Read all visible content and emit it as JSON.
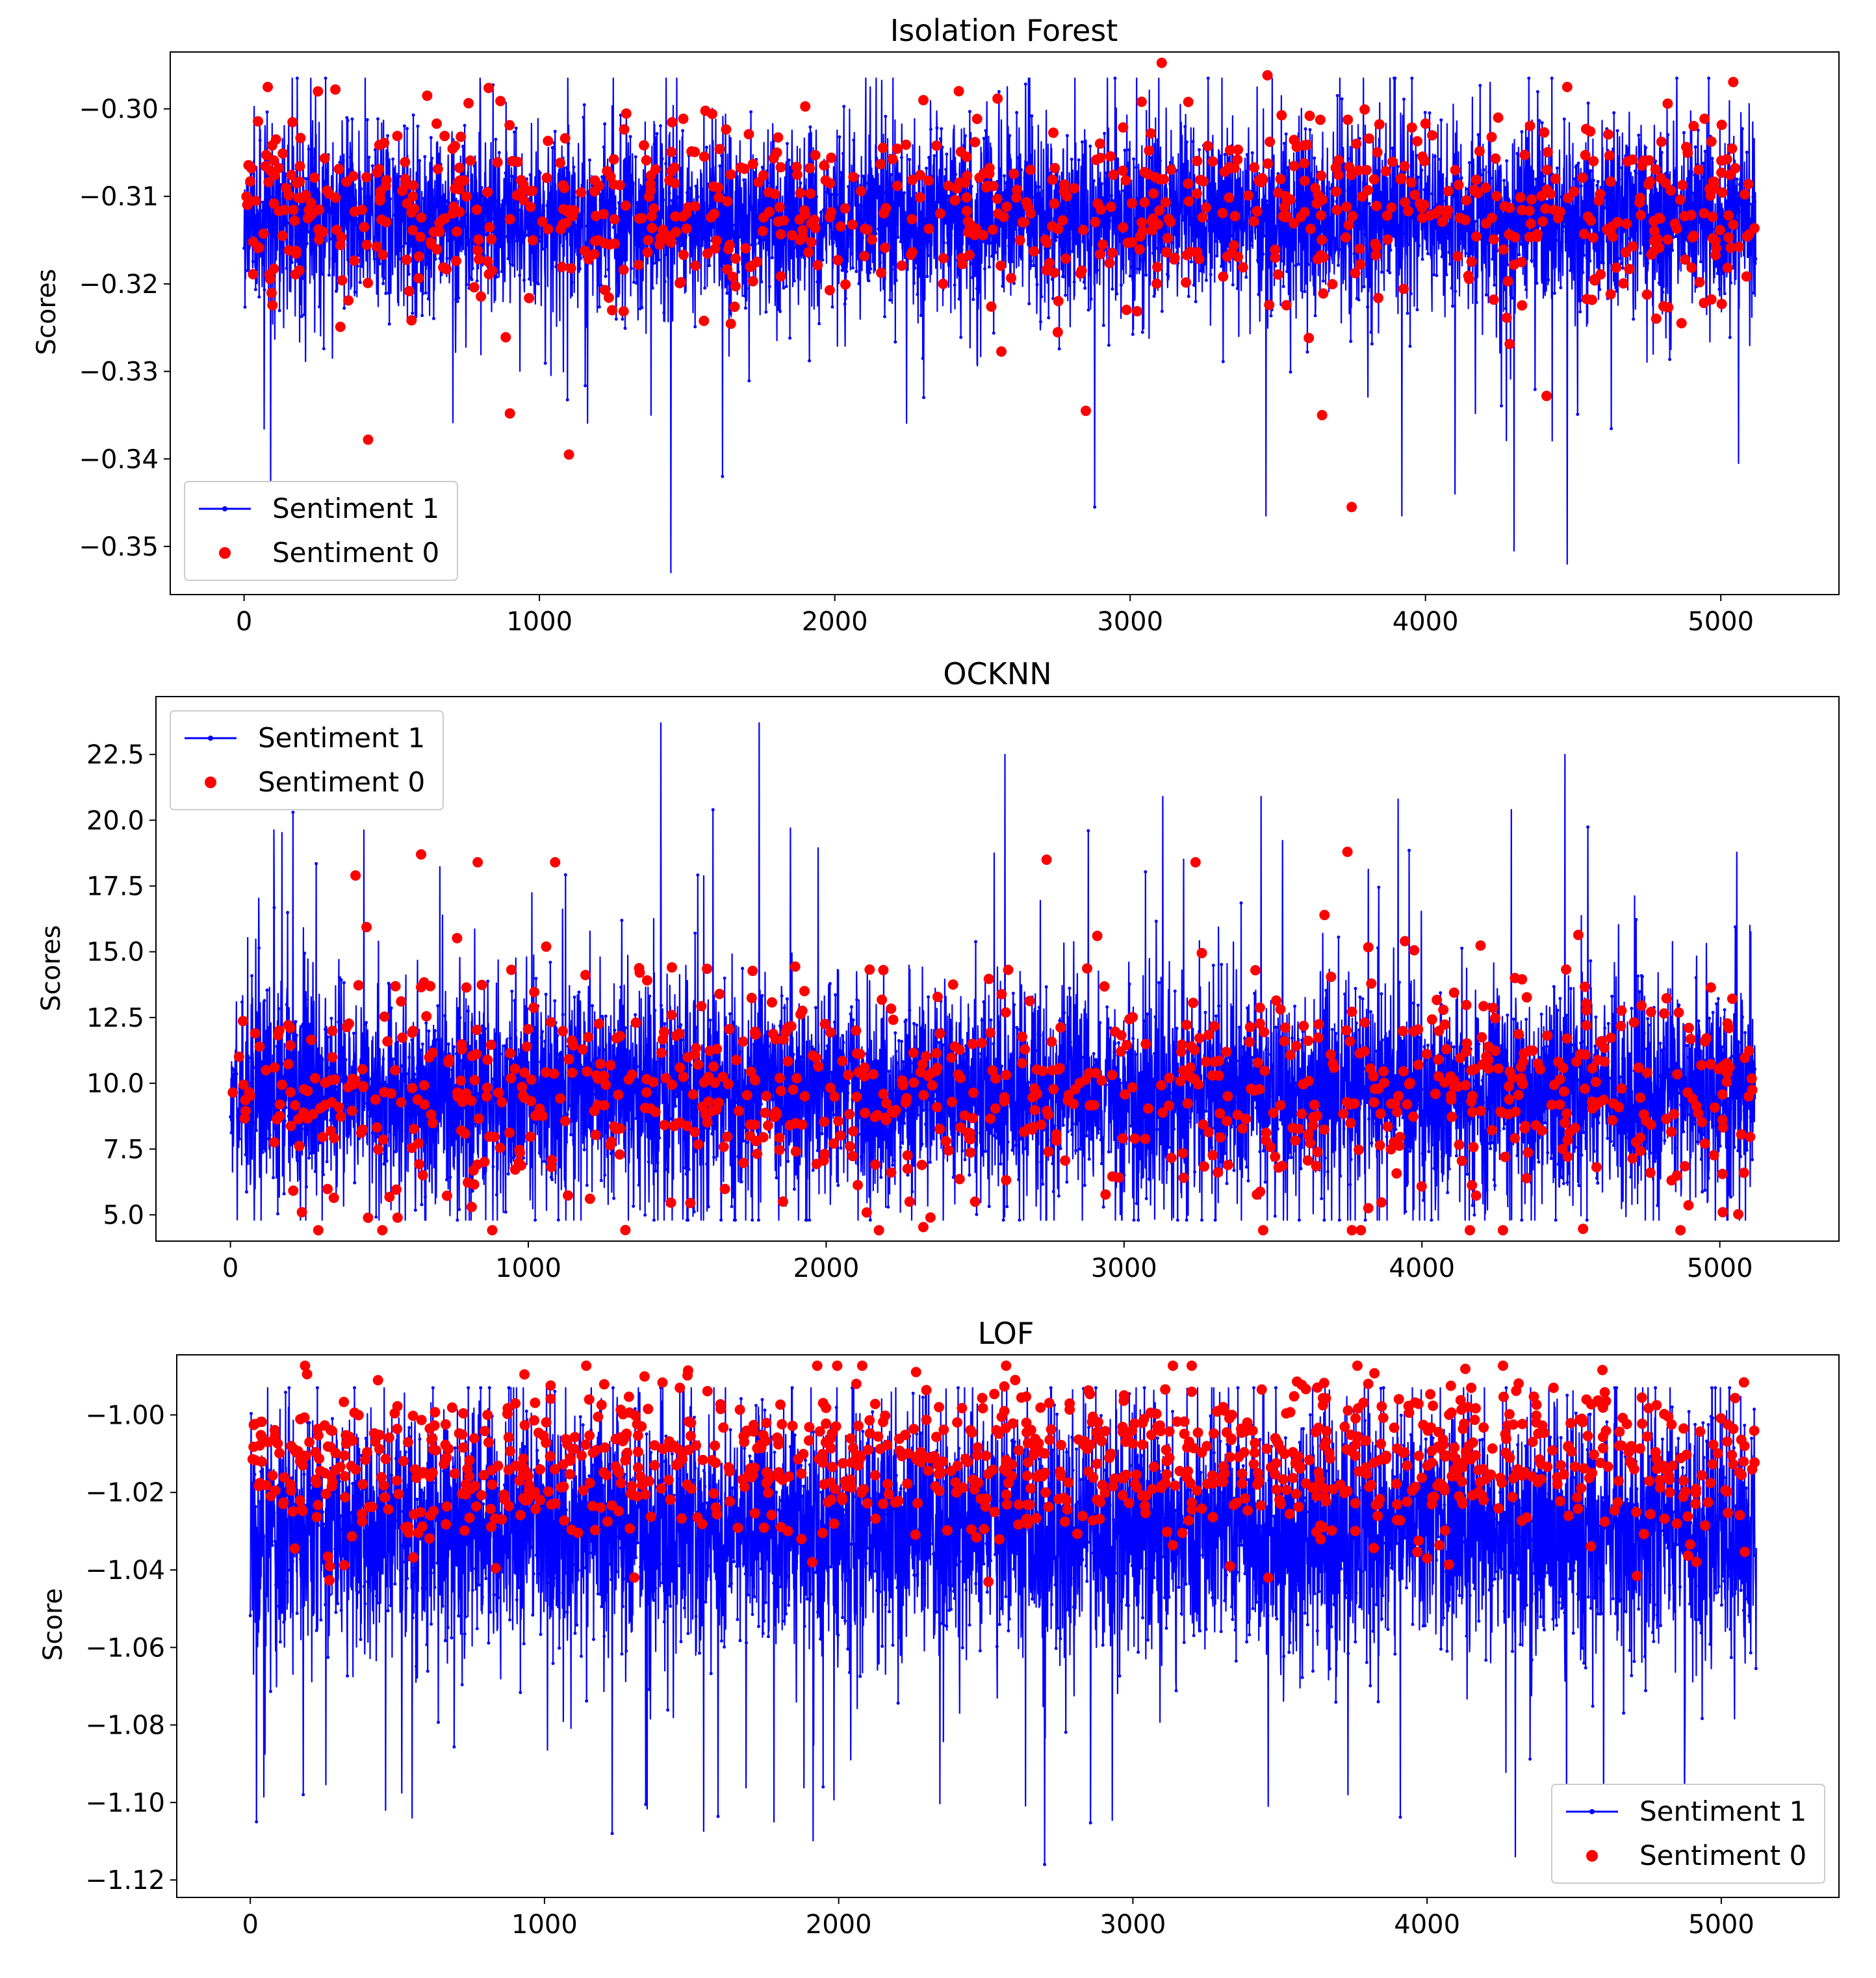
{
  "figure": {
    "legend_entries": [
      "Sentiment 1",
      "Sentiment 0"
    ],
    "colors": {
      "sentiment_1": "#0000ff",
      "sentiment_0": "#ff0000",
      "axis": "#000000",
      "background": "#ffffff"
    }
  },
  "chart_data": [
    {
      "id": "isolation-forest",
      "type": "line",
      "title": "Isolation Forest",
      "xlabel": "",
      "ylabel": "Scores",
      "xlim": [
        -250,
        5400
      ],
      "ylim": [
        -0.3555,
        -0.2935
      ],
      "xticks": [
        0,
        1000,
        2000,
        3000,
        4000,
        5000
      ],
      "xtick_labels": [
        "0",
        "1000",
        "2000",
        "3000",
        "4000",
        "5000"
      ],
      "yticks": [
        -0.3,
        -0.31,
        -0.32,
        -0.33,
        -0.34,
        -0.35
      ],
      "ytick_labels": [
        "−0.30",
        "−0.31",
        "−0.32",
        "−0.33",
        "−0.34",
        "−0.35"
      ],
      "legend": "lower-left",
      "n_points": 5120,
      "series": [
        {
          "name": "Sentiment 1",
          "style": "line with dot markers",
          "color": "#0000ff",
          "center": -0.3125,
          "spread": 0.0052,
          "min": -0.353,
          "max": -0.2965,
          "peaks": [
            [
              90,
              -0.344
            ],
            [
              1445,
              -0.353
            ],
            [
              3460,
              -0.3465
            ],
            [
              4300,
              -0.3505
            ],
            [
              4480,
              -0.352
            ],
            [
              1620,
              -0.342
            ],
            [
              3920,
              -0.3465
            ],
            [
              4100,
              -0.344
            ],
            [
              2880,
              -0.3455
            ],
            [
              5060,
              -0.3405
            ],
            [
              1250,
              -0.2965
            ],
            [
              2120,
              -0.2975
            ],
            [
              4350,
              -0.2965
            ],
            [
              3430,
              -0.2975
            ],
            [
              800,
              -0.2975
            ]
          ]
        },
        {
          "name": "Sentiment 0",
          "style": "markers",
          "color": "#ff0000",
          "center": -0.3115,
          "spread": 0.0055,
          "n_points": 820,
          "peaks": [
            [
              3750,
              -0.3455
            ],
            [
              1100,
              -0.3395
            ],
            [
              3650,
              -0.335
            ],
            [
              900,
              -0.3348
            ],
            [
              420,
              -0.3378
            ],
            [
              2850,
              -0.3345
            ],
            [
              4410,
              -0.3328
            ],
            [
              80,
              -0.2975
            ],
            [
              250,
              -0.298
            ],
            [
              4480,
              -0.2975
            ],
            [
              2300,
              -0.299
            ],
            [
              620,
              -0.2985
            ]
          ]
        }
      ]
    },
    {
      "id": "ocknn",
      "type": "line",
      "title": "OCKNN",
      "xlabel": "",
      "ylabel": "Scores",
      "xlim": [
        -250,
        5400
      ],
      "ylim": [
        4.0,
        24.7
      ],
      "xticks": [
        0,
        1000,
        2000,
        3000,
        4000,
        5000
      ],
      "xtick_labels": [
        "0",
        "1000",
        "2000",
        "3000",
        "4000",
        "5000"
      ],
      "yticks": [
        5.0,
        7.5,
        10.0,
        12.5,
        15.0,
        17.5,
        20.0,
        22.5
      ],
      "ytick_labels": [
        "5.0",
        "7.5",
        "10.0",
        "12.5",
        "15.0",
        "17.5",
        "20.0",
        "22.5"
      ],
      "legend": "top-left",
      "n_points": 5120,
      "series": [
        {
          "name": "Sentiment 1",
          "style": "line with dot markers",
          "color": "#0000ff",
          "center": 9.6,
          "spread": 2.1,
          "min": 4.8,
          "max": 23.7,
          "peaks": [
            [
              1445,
              23.7
            ],
            [
              1775,
              23.7
            ],
            [
              4480,
              22.5
            ],
            [
              2600,
              22.5
            ],
            [
              210,
              20.3
            ],
            [
              3130,
              20.9
            ],
            [
              3460,
              20.9
            ],
            [
              3920,
              20.8
            ],
            [
              4300,
              20.4
            ],
            [
              1620,
              20.4
            ],
            [
              1880,
              19.7
            ],
            [
              2880,
              19.6
            ]
          ]
        },
        {
          "name": "Sentiment 0",
          "style": "markers",
          "color": "#ff0000",
          "center": 9.8,
          "spread": 2.2,
          "n_points": 820,
          "peaks": [
            [
              3750,
              18.8
            ],
            [
              640,
              18.7
            ],
            [
              2740,
              18.5
            ],
            [
              1090,
              18.4
            ],
            [
              830,
              18.4
            ],
            [
              3240,
              18.4
            ],
            [
              420,
              17.9
            ],
            [
              2350,
              4.9
            ],
            [
              240,
              5.1
            ],
            [
              5010,
              5.1
            ],
            [
              2500,
              5.5
            ],
            [
              2280,
              5.5
            ],
            [
              810,
              5.3
            ]
          ]
        }
      ]
    },
    {
      "id": "lof",
      "type": "line",
      "title": "LOF",
      "xlabel": "",
      "ylabel": "Score",
      "xlim": [
        -250,
        5400
      ],
      "ylim": [
        -1.1245,
        -0.9845
      ],
      "xticks": [
        0,
        1000,
        2000,
        3000,
        4000,
        5000
      ],
      "xtick_labels": [
        "0",
        "1000",
        "2000",
        "3000",
        "4000",
        "5000"
      ],
      "yticks": [
        -1.0,
        -1.02,
        -1.04,
        -1.06,
        -1.08,
        -1.1,
        -1.12
      ],
      "ytick_labels": [
        "−1.00",
        "−1.02",
        "−1.04",
        "−1.06",
        "−1.08",
        "−1.10",
        "−1.12"
      ],
      "legend": "lower-right",
      "n_points": 5120,
      "series": [
        {
          "name": "Sentiment 1",
          "style": "line with dot markers",
          "color": "#0000ff",
          "center": -1.03,
          "spread": 0.016,
          "min": -1.116,
          "max": -0.993,
          "peaks": [
            [
              2700,
              -1.116
            ],
            [
              4300,
              -1.114
            ],
            [
              1230,
              -1.108
            ],
            [
              1780,
              -1.105
            ],
            [
              550,
              -1.104
            ],
            [
              4600,
              -1.106
            ],
            [
              460,
              -1.102
            ],
            [
              180,
              -1.098
            ],
            [
              3460,
              -1.101
            ]
          ]
        },
        {
          "name": "Sentiment 0",
          "style": "markers",
          "color": "#ff0000",
          "center": -1.012,
          "spread": 0.01,
          "n_points": 1050,
          "peaks": [
            [
              2600,
              -0.991
            ],
            [
              2060,
              -0.992
            ],
            [
              3800,
              -0.992
            ],
            [
              4150,
              -0.993
            ],
            [
              1460,
              -0.993
            ],
            [
              3200,
              -0.994
            ],
            [
              4430,
              -0.993
            ],
            [
              3460,
              -1.042
            ],
            [
              3330,
              -1.039
            ],
            [
              4000,
              -1.037
            ],
            [
              270,
              -1.039
            ]
          ]
        }
      ]
    }
  ]
}
